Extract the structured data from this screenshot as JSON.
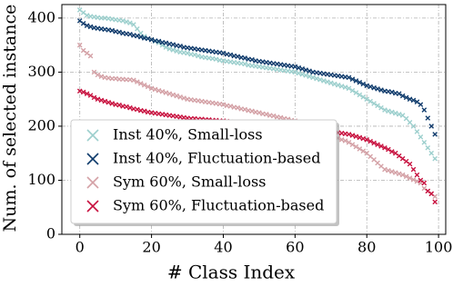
{
  "chart_data": {
    "type": "scatter",
    "xlabel": "# Class Index",
    "ylabel": "Num. of selected instance",
    "xlim": [
      -5,
      102
    ],
    "ylim": [
      0,
      425
    ],
    "xticks": [
      0,
      20,
      40,
      60,
      80,
      100
    ],
    "yticks": [
      0,
      100,
      200,
      300,
      400
    ],
    "grid": true,
    "legend": "lower left",
    "x": [
      0,
      1,
      2,
      3,
      4,
      5,
      6,
      7,
      8,
      9,
      10,
      11,
      12,
      13,
      14,
      15,
      16,
      17,
      18,
      19,
      20,
      21,
      22,
      23,
      24,
      25,
      26,
      27,
      28,
      29,
      30,
      31,
      32,
      33,
      34,
      35,
      36,
      37,
      38,
      39,
      40,
      41,
      42,
      43,
      44,
      45,
      46,
      47,
      48,
      49,
      50,
      51,
      52,
      53,
      54,
      55,
      56,
      57,
      58,
      59,
      60,
      61,
      62,
      63,
      64,
      65,
      66,
      67,
      68,
      69,
      70,
      71,
      72,
      73,
      74,
      75,
      76,
      77,
      78,
      79,
      80,
      81,
      82,
      83,
      84,
      85,
      86,
      87,
      88,
      89,
      90,
      91,
      92,
      93,
      94,
      95,
      96,
      97,
      98,
      99
    ],
    "series": [
      {
        "name": "Inst 40%, Small-loss",
        "color": "#9ccfcd",
        "values": [
          415,
          410,
          405,
          403,
          402,
          401,
          400,
          400,
          399,
          398,
          397,
          396,
          395,
          393,
          391,
          388,
          380,
          372,
          366,
          362,
          360,
          357,
          354,
          350,
          346,
          343,
          341,
          339,
          337,
          336,
          335,
          333,
          332,
          330,
          328,
          327,
          326,
          325,
          324,
          322,
          321,
          320,
          319,
          318,
          317,
          316,
          315,
          313,
          312,
          311,
          310,
          309,
          308,
          307,
          306,
          305,
          304,
          303,
          302,
          301,
          300,
          298,
          296,
          294,
          292,
          290,
          288,
          286,
          284,
          282,
          280,
          278,
          276,
          274,
          272,
          270,
          266,
          262,
          258,
          254,
          250,
          246,
          242,
          238,
          234,
          230,
          228,
          226,
          224,
          222,
          220,
          214,
          207,
          200,
          190,
          180,
          170,
          160,
          150,
          140
        ]
      },
      {
        "name": "Inst 40%, Fluctuation-based",
        "color": "#0f3b6c",
        "values": [
          395,
          390,
          386,
          384,
          382,
          381,
          380,
          379,
          378,
          377,
          375,
          374,
          372,
          371,
          370,
          368,
          367,
          365,
          363,
          362,
          360,
          358,
          357,
          355,
          354,
          352,
          351,
          349,
          348,
          346,
          345,
          344,
          343,
          342,
          341,
          340,
          339,
          338,
          337,
          336,
          335,
          333,
          332,
          330,
          329,
          327,
          326,
          324,
          323,
          321,
          320,
          319,
          318,
          317,
          316,
          315,
          314,
          313,
          312,
          311,
          310,
          308,
          306,
          304,
          302,
          300,
          299,
          298,
          297,
          296,
          295,
          294,
          293,
          292,
          291,
          290,
          287,
          284,
          281,
          278,
          275,
          273,
          271,
          269,
          267,
          265,
          264,
          263,
          261,
          260,
          256,
          253,
          250,
          248,
          245,
          240,
          230,
          215,
          200,
          185
        ]
      },
      {
        "name": "Sym 60%, Small-loss",
        "color": "#d4a1a6",
        "values": [
          350,
          340,
          335,
          330,
          300,
          295,
          292,
          290,
          289,
          288,
          288,
          287,
          287,
          286,
          286,
          285,
          282,
          279,
          276,
          273,
          270,
          268,
          266,
          264,
          262,
          260,
          258,
          256,
          254,
          252,
          250,
          249,
          248,
          247,
          246,
          245,
          244,
          243,
          242,
          241,
          240,
          238,
          237,
          235,
          234,
          232,
          231,
          229,
          228,
          226,
          225,
          223,
          222,
          220,
          219,
          217,
          216,
          214,
          213,
          211,
          210,
          207,
          204,
          201,
          198,
          195,
          193,
          190,
          188,
          185,
          183,
          180,
          178,
          175,
          173,
          170,
          166,
          162,
          158,
          154,
          150,
          144,
          138,
          132,
          126,
          120,
          118,
          116,
          114,
          112,
          110,
          107,
          104,
          101,
          98,
          95,
          85,
          80,
          75,
          70
        ]
      },
      {
        "name": "Sym 60%, Fluctuation-based",
        "color": "#c8113f",
        "values": [
          265,
          263,
          260,
          257,
          253,
          250,
          248,
          246,
          244,
          242,
          240,
          239,
          237,
          236,
          234,
          232,
          231,
          229,
          228,
          226,
          225,
          224,
          223,
          222,
          221,
          220,
          219,
          218,
          217,
          216,
          215,
          214,
          214,
          213,
          213,
          212,
          212,
          211,
          211,
          210,
          210,
          209,
          208,
          207,
          206,
          205,
          204,
          203,
          202,
          201,
          200,
          200,
          199,
          199,
          198,
          197,
          197,
          196,
          196,
          195,
          195,
          195,
          194,
          194,
          193,
          193,
          192,
          192,
          191,
          191,
          190,
          189,
          188,
          187,
          186,
          185,
          183,
          181,
          179,
          177,
          175,
          172,
          169,
          166,
          163,
          160,
          157,
          153,
          150,
          145,
          140,
          135,
          130,
          120,
          110,
          100,
          95,
          80,
          75,
          60
        ]
      }
    ]
  }
}
